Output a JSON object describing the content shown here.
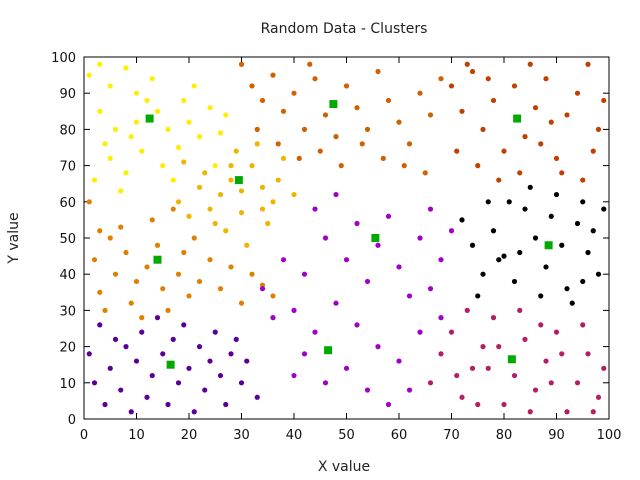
{
  "chart_data": {
    "type": "scatter",
    "title": "Random Data - Clusters",
    "xlabel": "X value",
    "ylabel": "Y value",
    "xlim": [
      0,
      100
    ],
    "ylim": [
      0,
      100
    ],
    "xticks": [
      0,
      10,
      20,
      30,
      40,
      50,
      60,
      70,
      80,
      90,
      100
    ],
    "yticks": [
      0,
      10,
      20,
      30,
      40,
      50,
      60,
      70,
      80,
      90,
      100
    ],
    "grid": false,
    "legend": "none",
    "series": [
      {
        "color": "#ffee00",
        "points": [
          [
            1,
            95
          ],
          [
            3,
            98
          ],
          [
            5,
            92
          ],
          [
            8,
            97
          ],
          [
            10,
            90
          ],
          [
            12,
            88
          ],
          [
            3,
            85
          ],
          [
            6,
            80
          ],
          [
            9,
            78
          ],
          [
            14,
            85
          ],
          [
            16,
            80
          ],
          [
            18,
            75
          ],
          [
            20,
            82
          ],
          [
            22,
            78
          ],
          [
            5,
            72
          ],
          [
            8,
            68
          ],
          [
            11,
            74
          ],
          [
            15,
            70
          ],
          [
            2,
            66
          ],
          [
            7,
            63
          ],
          [
            19,
            88
          ],
          [
            24,
            86
          ],
          [
            26,
            79
          ],
          [
            21,
            92
          ],
          [
            13,
            94
          ],
          [
            4,
            76
          ],
          [
            17,
            66
          ],
          [
            25,
            70
          ],
          [
            27,
            84
          ],
          [
            10,
            82
          ]
        ]
      },
      {
        "color": "#f0b400",
        "points": [
          [
            18,
            60
          ],
          [
            20,
            56
          ],
          [
            22,
            64
          ],
          [
            24,
            58
          ],
          [
            26,
            62
          ],
          [
            28,
            66
          ],
          [
            30,
            57
          ],
          [
            32,
            70
          ],
          [
            34,
            64
          ],
          [
            36,
            60
          ],
          [
            38,
            72
          ],
          [
            27,
            52
          ],
          [
            31,
            48
          ],
          [
            35,
            54
          ],
          [
            29,
            74
          ],
          [
            33,
            76
          ],
          [
            23,
            68
          ],
          [
            19,
            71
          ],
          [
            37,
            66
          ],
          [
            40,
            62
          ],
          [
            25,
            54
          ],
          [
            30,
            63
          ],
          [
            34,
            58
          ],
          [
            28,
            70
          ]
        ]
      },
      {
        "color": "#e08000",
        "points": [
          [
            1,
            60
          ],
          [
            2,
            44
          ],
          [
            3,
            35
          ],
          [
            4,
            30
          ],
          [
            5,
            50
          ],
          [
            6,
            40
          ],
          [
            7,
            53
          ],
          [
            8,
            46
          ],
          [
            9,
            32
          ],
          [
            10,
            38
          ],
          [
            11,
            28
          ],
          [
            12,
            42
          ],
          [
            14,
            48
          ],
          [
            15,
            36
          ],
          [
            16,
            30
          ],
          [
            18,
            40
          ],
          [
            19,
            46
          ],
          [
            20,
            34
          ],
          [
            22,
            38
          ],
          [
            24,
            44
          ],
          [
            26,
            36
          ],
          [
            28,
            42
          ],
          [
            30,
            32
          ],
          [
            32,
            40
          ],
          [
            34,
            37
          ],
          [
            36,
            34
          ],
          [
            13,
            55
          ],
          [
            3,
            52
          ],
          [
            17,
            58
          ],
          [
            21,
            50
          ]
        ]
      },
      {
        "color": "#d06000",
        "points": [
          [
            30,
            98
          ],
          [
            32,
            92
          ],
          [
            34,
            88
          ],
          [
            36,
            95
          ],
          [
            38,
            85
          ],
          [
            40,
            90
          ],
          [
            42,
            80
          ],
          [
            44,
            94
          ],
          [
            46,
            84
          ],
          [
            48,
            78
          ],
          [
            50,
            92
          ],
          [
            52,
            86
          ],
          [
            54,
            80
          ],
          [
            56,
            96
          ],
          [
            58,
            88
          ],
          [
            60,
            82
          ],
          [
            62,
            76
          ],
          [
            64,
            90
          ],
          [
            66,
            84
          ],
          [
            68,
            94
          ],
          [
            33,
            80
          ],
          [
            37,
            76
          ],
          [
            41,
            72
          ],
          [
            45,
            74
          ],
          [
            49,
            70
          ],
          [
            53,
            76
          ],
          [
            57,
            72
          ],
          [
            61,
            70
          ],
          [
            65,
            68
          ],
          [
            43,
            98
          ]
        ]
      },
      {
        "color": "#bf4000",
        "points": [
          [
            70,
            92
          ],
          [
            72,
            85
          ],
          [
            74,
            96
          ],
          [
            76,
            80
          ],
          [
            78,
            88
          ],
          [
            80,
            74
          ],
          [
            82,
            92
          ],
          [
            84,
            78
          ],
          [
            86,
            86
          ],
          [
            88,
            94
          ],
          [
            90,
            72
          ],
          [
            92,
            84
          ],
          [
            94,
            90
          ],
          [
            96,
            98
          ],
          [
            98,
            80
          ],
          [
            71,
            74
          ],
          [
            75,
            70
          ],
          [
            79,
            66
          ],
          [
            83,
            68
          ],
          [
            87,
            76
          ],
          [
            91,
            68
          ],
          [
            95,
            66
          ],
          [
            99,
            88
          ],
          [
            73,
            98
          ],
          [
            85,
            98
          ],
          [
            97,
            74
          ],
          [
            89,
            82
          ],
          [
            77,
            94
          ]
        ]
      },
      {
        "color": "#000000",
        "points": [
          [
            72,
            55
          ],
          [
            74,
            48
          ],
          [
            76,
            40
          ],
          [
            78,
            52
          ],
          [
            80,
            45
          ],
          [
            82,
            38
          ],
          [
            84,
            58
          ],
          [
            86,
            50
          ],
          [
            88,
            42
          ],
          [
            90,
            62
          ],
          [
            92,
            36
          ],
          [
            94,
            54
          ],
          [
            96,
            46
          ],
          [
            98,
            40
          ],
          [
            99,
            58
          ],
          [
            91,
            48
          ],
          [
            93,
            32
          ],
          [
            95,
            60
          ],
          [
            87,
            34
          ],
          [
            85,
            64
          ],
          [
            83,
            46
          ],
          [
            89,
            56
          ],
          [
            97,
            52
          ],
          [
            81,
            60
          ],
          [
            79,
            44
          ],
          [
            75,
            34
          ],
          [
            77,
            60
          ],
          [
            95,
            38
          ]
        ]
      },
      {
        "color": "#a000c8",
        "points": [
          [
            44,
            58
          ],
          [
            46,
            50
          ],
          [
            48,
            62
          ],
          [
            50,
            44
          ],
          [
            52,
            54
          ],
          [
            54,
            38
          ],
          [
            56,
            48
          ],
          [
            58,
            56
          ],
          [
            60,
            42
          ],
          [
            62,
            34
          ],
          [
            64,
            50
          ],
          [
            66,
            58
          ],
          [
            68,
            44
          ],
          [
            70,
            52
          ],
          [
            42,
            40
          ],
          [
            40,
            30
          ],
          [
            38,
            44
          ],
          [
            36,
            28
          ],
          [
            34,
            36
          ],
          [
            44,
            24
          ],
          [
            48,
            32
          ],
          [
            52,
            26
          ],
          [
            56,
            20
          ],
          [
            60,
            16
          ],
          [
            64,
            24
          ],
          [
            50,
            14
          ],
          [
            54,
            8
          ],
          [
            58,
            4
          ],
          [
            46,
            10
          ],
          [
            42,
            18
          ],
          [
            66,
            36
          ],
          [
            68,
            28
          ],
          [
            62,
            8
          ],
          [
            40,
            12
          ]
        ]
      },
      {
        "color": "#5a0096",
        "points": [
          [
            1,
            18
          ],
          [
            2,
            10
          ],
          [
            3,
            26
          ],
          [
            4,
            4
          ],
          [
            5,
            14
          ],
          [
            6,
            22
          ],
          [
            7,
            8
          ],
          [
            8,
            20
          ],
          [
            9,
            2
          ],
          [
            10,
            16
          ],
          [
            11,
            24
          ],
          [
            12,
            6
          ],
          [
            13,
            12
          ],
          [
            14,
            28
          ],
          [
            15,
            18
          ],
          [
            16,
            4
          ],
          [
            17,
            22
          ],
          [
            18,
            10
          ],
          [
            19,
            26
          ],
          [
            20,
            14
          ],
          [
            21,
            2
          ],
          [
            22,
            20
          ],
          [
            23,
            8
          ],
          [
            24,
            16
          ],
          [
            25,
            24
          ],
          [
            26,
            12
          ],
          [
            27,
            4
          ],
          [
            28,
            18
          ],
          [
            29,
            22
          ],
          [
            30,
            10
          ],
          [
            31,
            16
          ],
          [
            33,
            6
          ]
        ]
      },
      {
        "color": "#b41e64",
        "points": [
          [
            66,
            10
          ],
          [
            68,
            18
          ],
          [
            70,
            24
          ],
          [
            72,
            6
          ],
          [
            74,
            14
          ],
          [
            76,
            20
          ],
          [
            78,
            28
          ],
          [
            80,
            4
          ],
          [
            82,
            12
          ],
          [
            84,
            22
          ],
          [
            86,
            8
          ],
          [
            88,
            16
          ],
          [
            90,
            24
          ],
          [
            92,
            2
          ],
          [
            94,
            10
          ],
          [
            96,
            18
          ],
          [
            98,
            6
          ],
          [
            99,
            14
          ],
          [
            71,
            12
          ],
          [
            75,
            4
          ],
          [
            79,
            20
          ],
          [
            83,
            30
          ],
          [
            87,
            26
          ],
          [
            91,
            18
          ],
          [
            95,
            26
          ],
          [
            73,
            30
          ],
          [
            77,
            14
          ],
          [
            85,
            2
          ],
          [
            89,
            10
          ],
          [
            97,
            2
          ]
        ]
      },
      {
        "color": "#00aa00",
        "points": [
          [
            12.5,
            83
          ],
          [
            29.5,
            66
          ],
          [
            47.5,
            87
          ],
          [
            82.5,
            83
          ],
          [
            14,
            44
          ],
          [
            55.5,
            50
          ],
          [
            88.5,
            48
          ],
          [
            16.5,
            15
          ],
          [
            46.5,
            19
          ],
          [
            81.5,
            16.5
          ]
        ]
      }
    ]
  }
}
